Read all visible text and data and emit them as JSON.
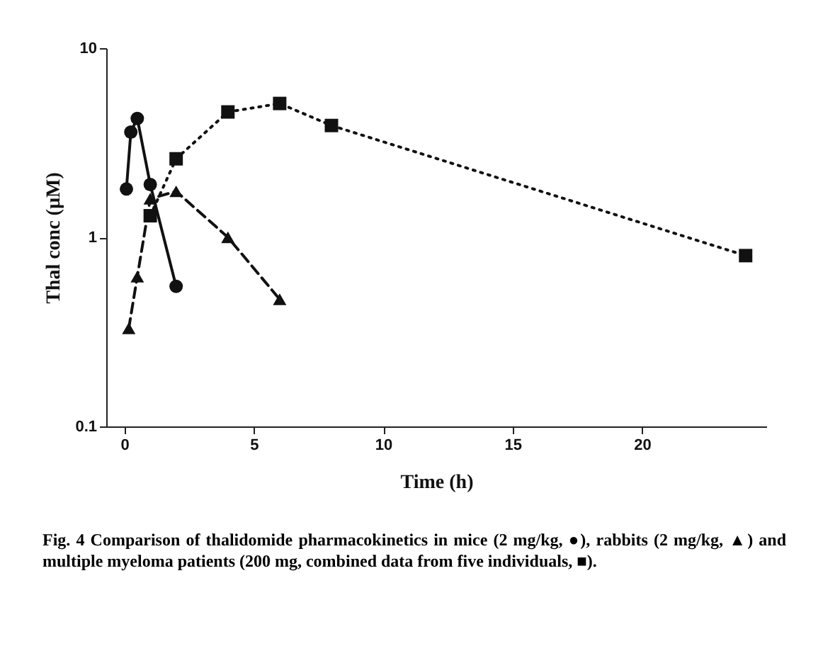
{
  "chart_data": {
    "type": "line",
    "xlabel": "Time (h)",
    "ylabel": "Thal conc (µM)",
    "x": [
      0.08,
      0.25,
      0.5,
      1,
      2
    ],
    "series": [
      {
        "color": "#111111",
        "marker": "circle",
        "line_style": "solid",
        "values": [
          1.8,
          3.6,
          4.25,
          1.9,
          0.55
        ]
      },
      {
        "color": "#111111",
        "marker": "triangle",
        "line_style": "dashed",
        "x": [
          0.17,
          0.5,
          1,
          2,
          4,
          6
        ],
        "values": [
          0.33,
          0.62,
          1.6,
          1.75,
          1.0,
          0.47
        ]
      },
      {
        "color": "#111111",
        "marker": "square",
        "line_style": "dotted",
        "x": [
          1,
          2,
          4,
          6,
          8,
          24
        ],
        "values": [
          1.3,
          2.6,
          4.6,
          5.1,
          3.9,
          0.8
        ]
      }
    ],
    "log": "y",
    "xlim": [
      -0.7,
      24.8
    ],
    "ylim": [
      0.1,
      10
    ],
    "xticks": [
      0,
      5,
      10,
      15,
      20
    ],
    "yticks": [
      0.1,
      1,
      10
    ],
    "grid": false,
    "annotations": [
      "Fig. 4  Comparison of thalidomide pharmacokinetics in mice (2 mg/kg, ●), rabbits (2 mg/kg, ▲) and multiple myeloma patients (200 mg, combined data from five individuals, ■)."
    ]
  }
}
